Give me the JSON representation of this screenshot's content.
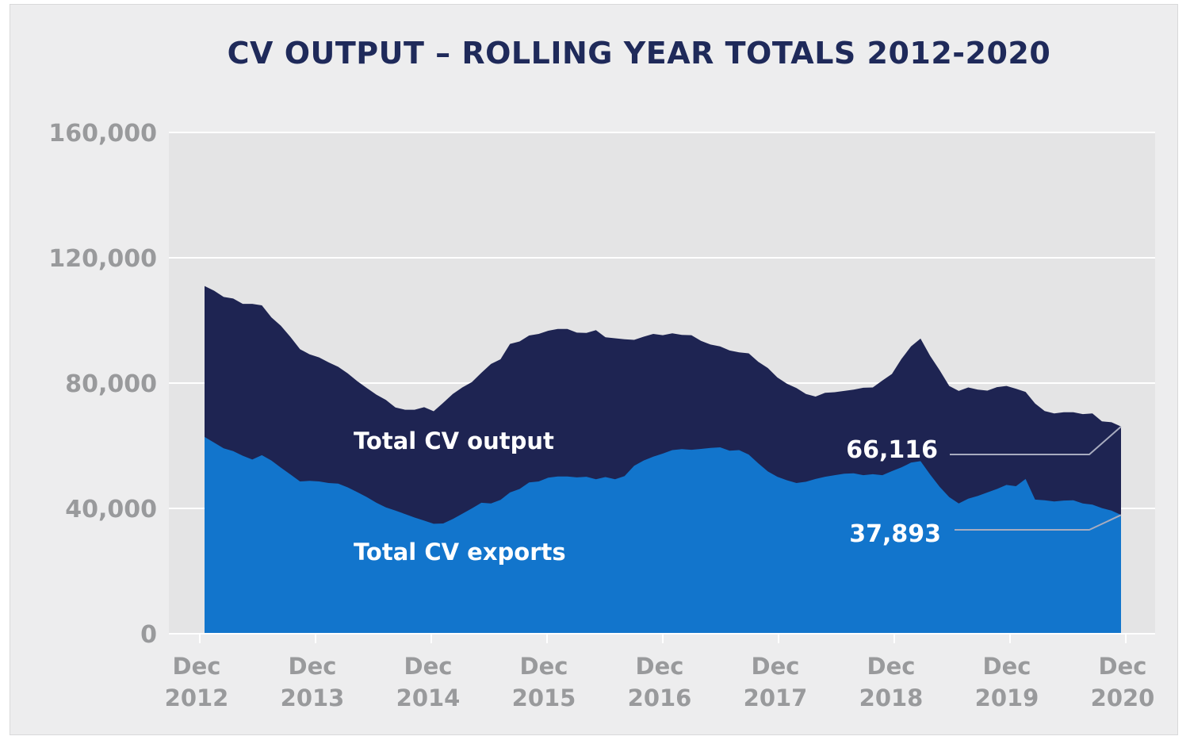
{
  "chart_data": {
    "type": "area",
    "title": "CV OUTPUT – ROLLING YEAR TOTALS 2012-2020",
    "xlabel": "",
    "ylabel": "",
    "ylim": [
      0,
      160000
    ],
    "yticks": [
      "0",
      "40,000",
      "80,000",
      "120,000",
      "160,000"
    ],
    "xticks": [
      [
        "Dec",
        "2012"
      ],
      [
        "Dec",
        "2013"
      ],
      [
        "Dec",
        "2014"
      ],
      [
        "Dec",
        "2015"
      ],
      [
        "Dec",
        "2016"
      ],
      [
        "Dec",
        "2017"
      ],
      [
        "Dec",
        "2018"
      ],
      [
        "Dec",
        "2019"
      ],
      [
        "Dec",
        "2020"
      ]
    ],
    "grid": true,
    "x_start": "Dec 2012",
    "x_end": "Dec 2020",
    "series": [
      {
        "name": "Total CV output",
        "color": "#1e2452",
        "end_label": "66,116",
        "values": [
          111000,
          109500,
          107500,
          107000,
          105300,
          105300,
          104800,
          101000,
          98300,
          94700,
          90800,
          89200,
          88200,
          86600,
          85200,
          83100,
          80600,
          78400,
          76300,
          74600,
          72200,
          71500,
          71500,
          72300,
          71000,
          73700,
          76500,
          78600,
          80300,
          83300,
          86100,
          87600,
          92500,
          93300,
          95200,
          95700,
          96700,
          97300,
          97300,
          96100,
          96000,
          96900,
          94600,
          94300,
          94000,
          93800,
          94800,
          95700,
          95300,
          95900,
          95400,
          95300,
          93500,
          92300,
          91700,
          90400,
          89800,
          89500,
          86800,
          84800,
          81800,
          79800,
          78400,
          76500,
          75700,
          76900,
          77100,
          77500,
          77900,
          78500,
          78600,
          80800,
          82900,
          87700,
          91700,
          94200,
          88700,
          84100,
          79100,
          77500,
          78600,
          77900,
          77600,
          78700,
          79100,
          78200,
          77200,
          73500,
          71100,
          70300,
          70700,
          70700,
          70100,
          70300,
          67800,
          67500,
          66116
        ]
      },
      {
        "name": "Total CV exports",
        "color": "#1275cc",
        "end_label": "37,893",
        "values": [
          62800,
          61000,
          59200,
          58300,
          56800,
          55600,
          57000,
          55300,
          53000,
          50800,
          48600,
          48800,
          48600,
          48100,
          47900,
          46700,
          45200,
          43600,
          41800,
          40300,
          39300,
          38200,
          37100,
          36100,
          35100,
          35200,
          36600,
          38300,
          40000,
          41800,
          41600,
          42700,
          45100,
          46200,
          48300,
          48600,
          49800,
          50200,
          50200,
          49900,
          50100,
          49300,
          50000,
          49300,
          50300,
          53600,
          55300,
          56500,
          57500,
          58600,
          58900,
          58700,
          59000,
          59300,
          59500,
          58400,
          58600,
          57200,
          54400,
          51800,
          50100,
          49000,
          48100,
          48500,
          49400,
          50100,
          50600,
          51100,
          51200,
          50600,
          50900,
          50600,
          51900,
          53100,
          54600,
          55100,
          50800,
          46900,
          43600,
          41600,
          43100,
          44000,
          45100,
          46200,
          47500,
          47100,
          49400,
          42800,
          42600,
          42200,
          42500,
          42600,
          41600,
          41200,
          40100,
          39300,
          37893
        ]
      }
    ]
  }
}
